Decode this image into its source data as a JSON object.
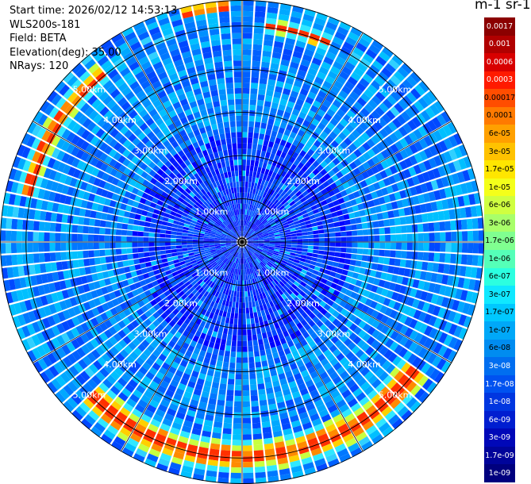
{
  "info": {
    "start_time": "Start time: 2026/02/12 14:53:13",
    "instrument": "WLS200s-181",
    "field": "Field: BETA",
    "elevation": "Elevation(deg): 35.00",
    "nrays": "NRays: 120"
  },
  "colorbar": {
    "title": "m-1 sr-1",
    "labels": [
      "0.0017",
      "0.001",
      "0.0006",
      "0.0003",
      "0.00017",
      "0.0001",
      "6e-05",
      "3e-05",
      "1.7e-05",
      "1e-05",
      "6e-06",
      "3e-06",
      "1.7e-06",
      "1e-06",
      "6e-07",
      "3e-07",
      "1.7e-07",
      "1e-07",
      "6e-08",
      "3e-08",
      "1.7e-08",
      "1e-08",
      "6e-09",
      "3e-09",
      "1.7e-09",
      "1e-09"
    ],
    "colors": [
      "#8b0000",
      "#b00000",
      "#d80000",
      "#ff1a00",
      "#ff4d00",
      "#ff7a00",
      "#ffa000",
      "#ffc200",
      "#ffe600",
      "#f4ff1a",
      "#d0ff40",
      "#a8ff6a",
      "#80ff90",
      "#55ffb8",
      "#2cffe0",
      "#10e8ff",
      "#00c8ff",
      "#00a8f8",
      "#008cf0",
      "#006ef0",
      "#0052f0",
      "#0036e0",
      "#001ed0",
      "#0008b8",
      "#00049a",
      "#00007e"
    ]
  },
  "range_rings": {
    "labels": [
      "1.00km",
      "2.00km",
      "3.00km",
      "4.00km",
      "5.00km"
    ]
  },
  "scan": {
    "max_range_km": 5.6,
    "nrays": 120,
    "bands": [
      {
        "from_deg": 5,
        "to_deg": 25,
        "r0_km": 4.85,
        "r1_km": 5.2
      },
      {
        "from_deg": 125,
        "to_deg": 225,
        "r0_km": 4.6,
        "r1_km": 5.35
      },
      {
        "from_deg": 283,
        "to_deg": 320,
        "r0_km": 4.85,
        "r1_km": 5.3
      },
      {
        "from_deg": 346,
        "to_deg": 356,
        "r0_km": 5.3,
        "r1_km": 5.6
      }
    ]
  }
}
